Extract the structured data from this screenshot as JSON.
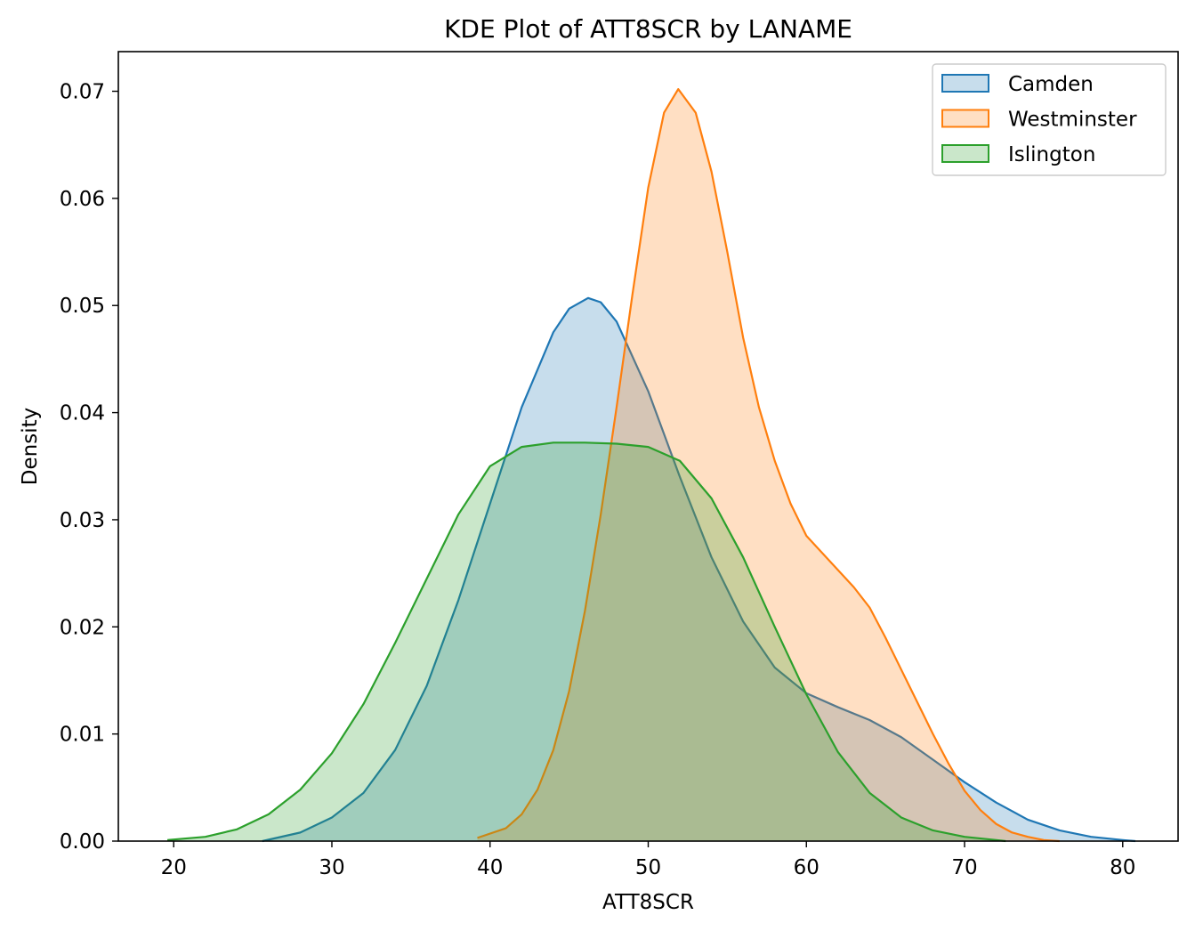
{
  "chart_data": {
    "type": "area",
    "subtype": "kde",
    "title": "KDE Plot of ATT8SCR by LANAME",
    "xlabel": "ATT8SCR",
    "ylabel": "Density",
    "xlim": [
      16.5,
      83.5
    ],
    "ylim": [
      0,
      0.0737
    ],
    "xticks": [
      20,
      30,
      40,
      50,
      60,
      70,
      80
    ],
    "yticks": [
      0.0,
      0.01,
      0.02,
      0.03,
      0.04,
      0.05,
      0.06,
      0.07
    ],
    "xtick_labels": [
      "20",
      "30",
      "40",
      "50",
      "60",
      "70",
      "80"
    ],
    "ytick_labels": [
      "0.00",
      "0.01",
      "0.02",
      "0.03",
      "0.04",
      "0.05",
      "0.06",
      "0.07"
    ],
    "grid": false,
    "legend_position": "top-right",
    "series": [
      {
        "name": "Camden",
        "color": "#1f77b4",
        "x": [
          25.6,
          28,
          30,
          32,
          34,
          36,
          38,
          40,
          42,
          44,
          45,
          46.2,
          47,
          48,
          50,
          52,
          54,
          56,
          58,
          60,
          62,
          64,
          66,
          68,
          70,
          72,
          74,
          76,
          78,
          80,
          80.8
        ],
        "y": [
          0.0,
          0.0008,
          0.0022,
          0.0045,
          0.0085,
          0.0145,
          0.0225,
          0.0315,
          0.0405,
          0.0475,
          0.0497,
          0.0507,
          0.0503,
          0.0485,
          0.042,
          0.034,
          0.0265,
          0.0205,
          0.0162,
          0.0138,
          0.0125,
          0.0113,
          0.0097,
          0.0076,
          0.0055,
          0.0036,
          0.002,
          0.001,
          0.0004,
          0.0001,
          0.0
        ]
      },
      {
        "name": "Westminster",
        "color": "#ff7f0e",
        "x": [
          39.2,
          41,
          42,
          43,
          44,
          45,
          46,
          47,
          48,
          49,
          50,
          51,
          51.9,
          53,
          54,
          55,
          56,
          57,
          58,
          59,
          60,
          62,
          63,
          64,
          65,
          66,
          67,
          68,
          69,
          70,
          71,
          72,
          73,
          74,
          75,
          76
        ],
        "y": [
          0.0003,
          0.0012,
          0.0025,
          0.0048,
          0.0085,
          0.014,
          0.0215,
          0.0305,
          0.0405,
          0.051,
          0.061,
          0.068,
          0.0702,
          0.068,
          0.0625,
          0.055,
          0.047,
          0.0405,
          0.0355,
          0.0315,
          0.0285,
          0.0253,
          0.0237,
          0.0218,
          0.019,
          0.016,
          0.013,
          0.01,
          0.0072,
          0.0047,
          0.0029,
          0.0016,
          0.0008,
          0.0004,
          0.0001,
          0.0
        ]
      },
      {
        "name": "Islington",
        "color": "#2ca02c",
        "x": [
          19.6,
          22,
          24,
          26,
          28,
          30,
          32,
          34,
          36,
          38,
          40,
          42,
          44,
          46,
          48,
          50,
          52,
          54,
          56,
          58,
          60,
          62,
          64,
          66,
          68,
          70,
          72,
          72.6
        ],
        "y": [
          0.0001,
          0.0004,
          0.0011,
          0.0025,
          0.0048,
          0.0082,
          0.0128,
          0.0185,
          0.0245,
          0.0305,
          0.035,
          0.0368,
          0.0372,
          0.0372,
          0.0371,
          0.0368,
          0.0355,
          0.032,
          0.0265,
          0.02,
          0.0137,
          0.0083,
          0.0045,
          0.0022,
          0.001,
          0.0004,
          0.0001,
          0.0
        ]
      }
    ]
  }
}
